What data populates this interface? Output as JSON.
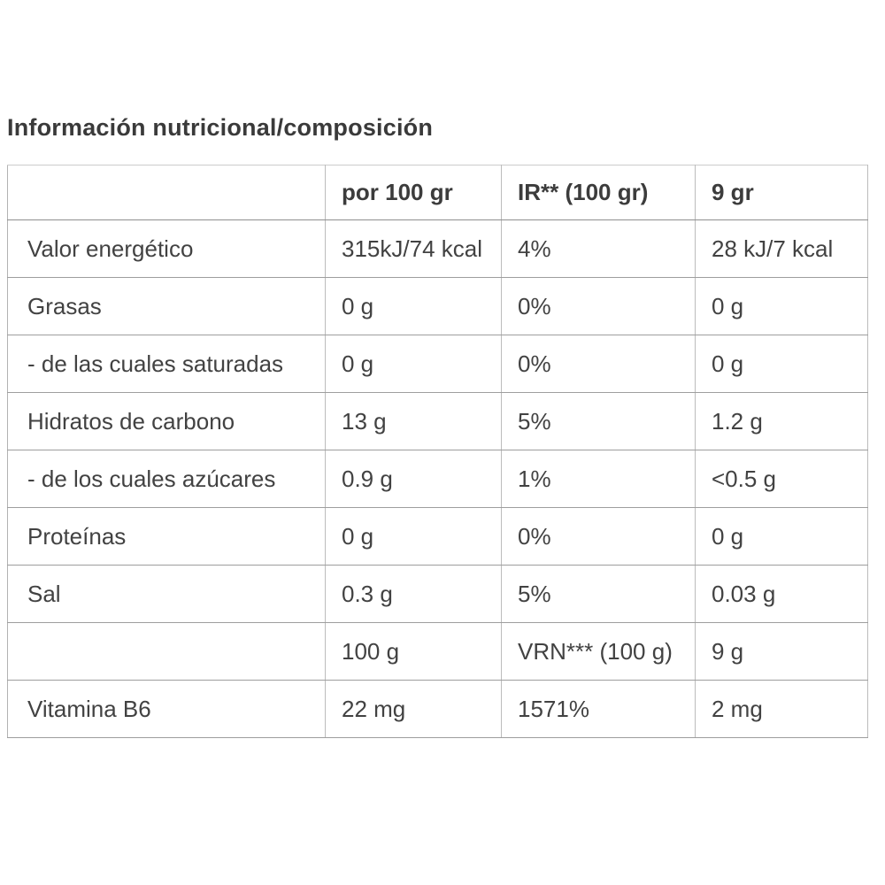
{
  "title": "Información nutricional/composición",
  "colors": {
    "background": "#ffffff",
    "title_text": "#3a3a3a",
    "body_text": "#424242",
    "grid_horizontal": "#9e9e9e",
    "grid_vertical": "#bcbcbc"
  },
  "table": {
    "columns": [
      "",
      "por 100 gr",
      "IR** (100 gr)",
      "9 gr"
    ],
    "rows": [
      {
        "label": "Valor energético",
        "per_100gr": "315kJ/74 kcal",
        "ir_100gr": "4%",
        "per_9gr": "28 kJ/7 kcal"
      },
      {
        "label": "Grasas",
        "per_100gr": "0 g",
        "ir_100gr": "0%",
        "per_9gr": "0 g"
      },
      {
        "label": "- de las cuales saturadas",
        "per_100gr": "0 g",
        "ir_100gr": "0%",
        "per_9gr": "0 g"
      },
      {
        "label": "Hidratos de carbono",
        "per_100gr": "13 g",
        "ir_100gr": "5%",
        "per_9gr": "1.2 g"
      },
      {
        "label": "- de los cuales azúcares",
        "per_100gr": "0.9 g",
        "ir_100gr": "1%",
        "per_9gr": "<0.5 g"
      },
      {
        "label": "Proteínas",
        "per_100gr": "0 g",
        "ir_100gr": "0%",
        "per_9gr": "0 g"
      },
      {
        "label": "Sal",
        "per_100gr": "0.3 g",
        "ir_100gr": "5%",
        "per_9gr": "0.03 g"
      },
      {
        "label": "",
        "per_100gr": "100 g",
        "ir_100gr": "VRN*** (100 g)",
        "per_9gr": "9 g"
      },
      {
        "label": "Vitamina B6",
        "per_100gr": "22 mg",
        "ir_100gr": "1571%",
        "per_9gr": "2 mg"
      }
    ]
  }
}
